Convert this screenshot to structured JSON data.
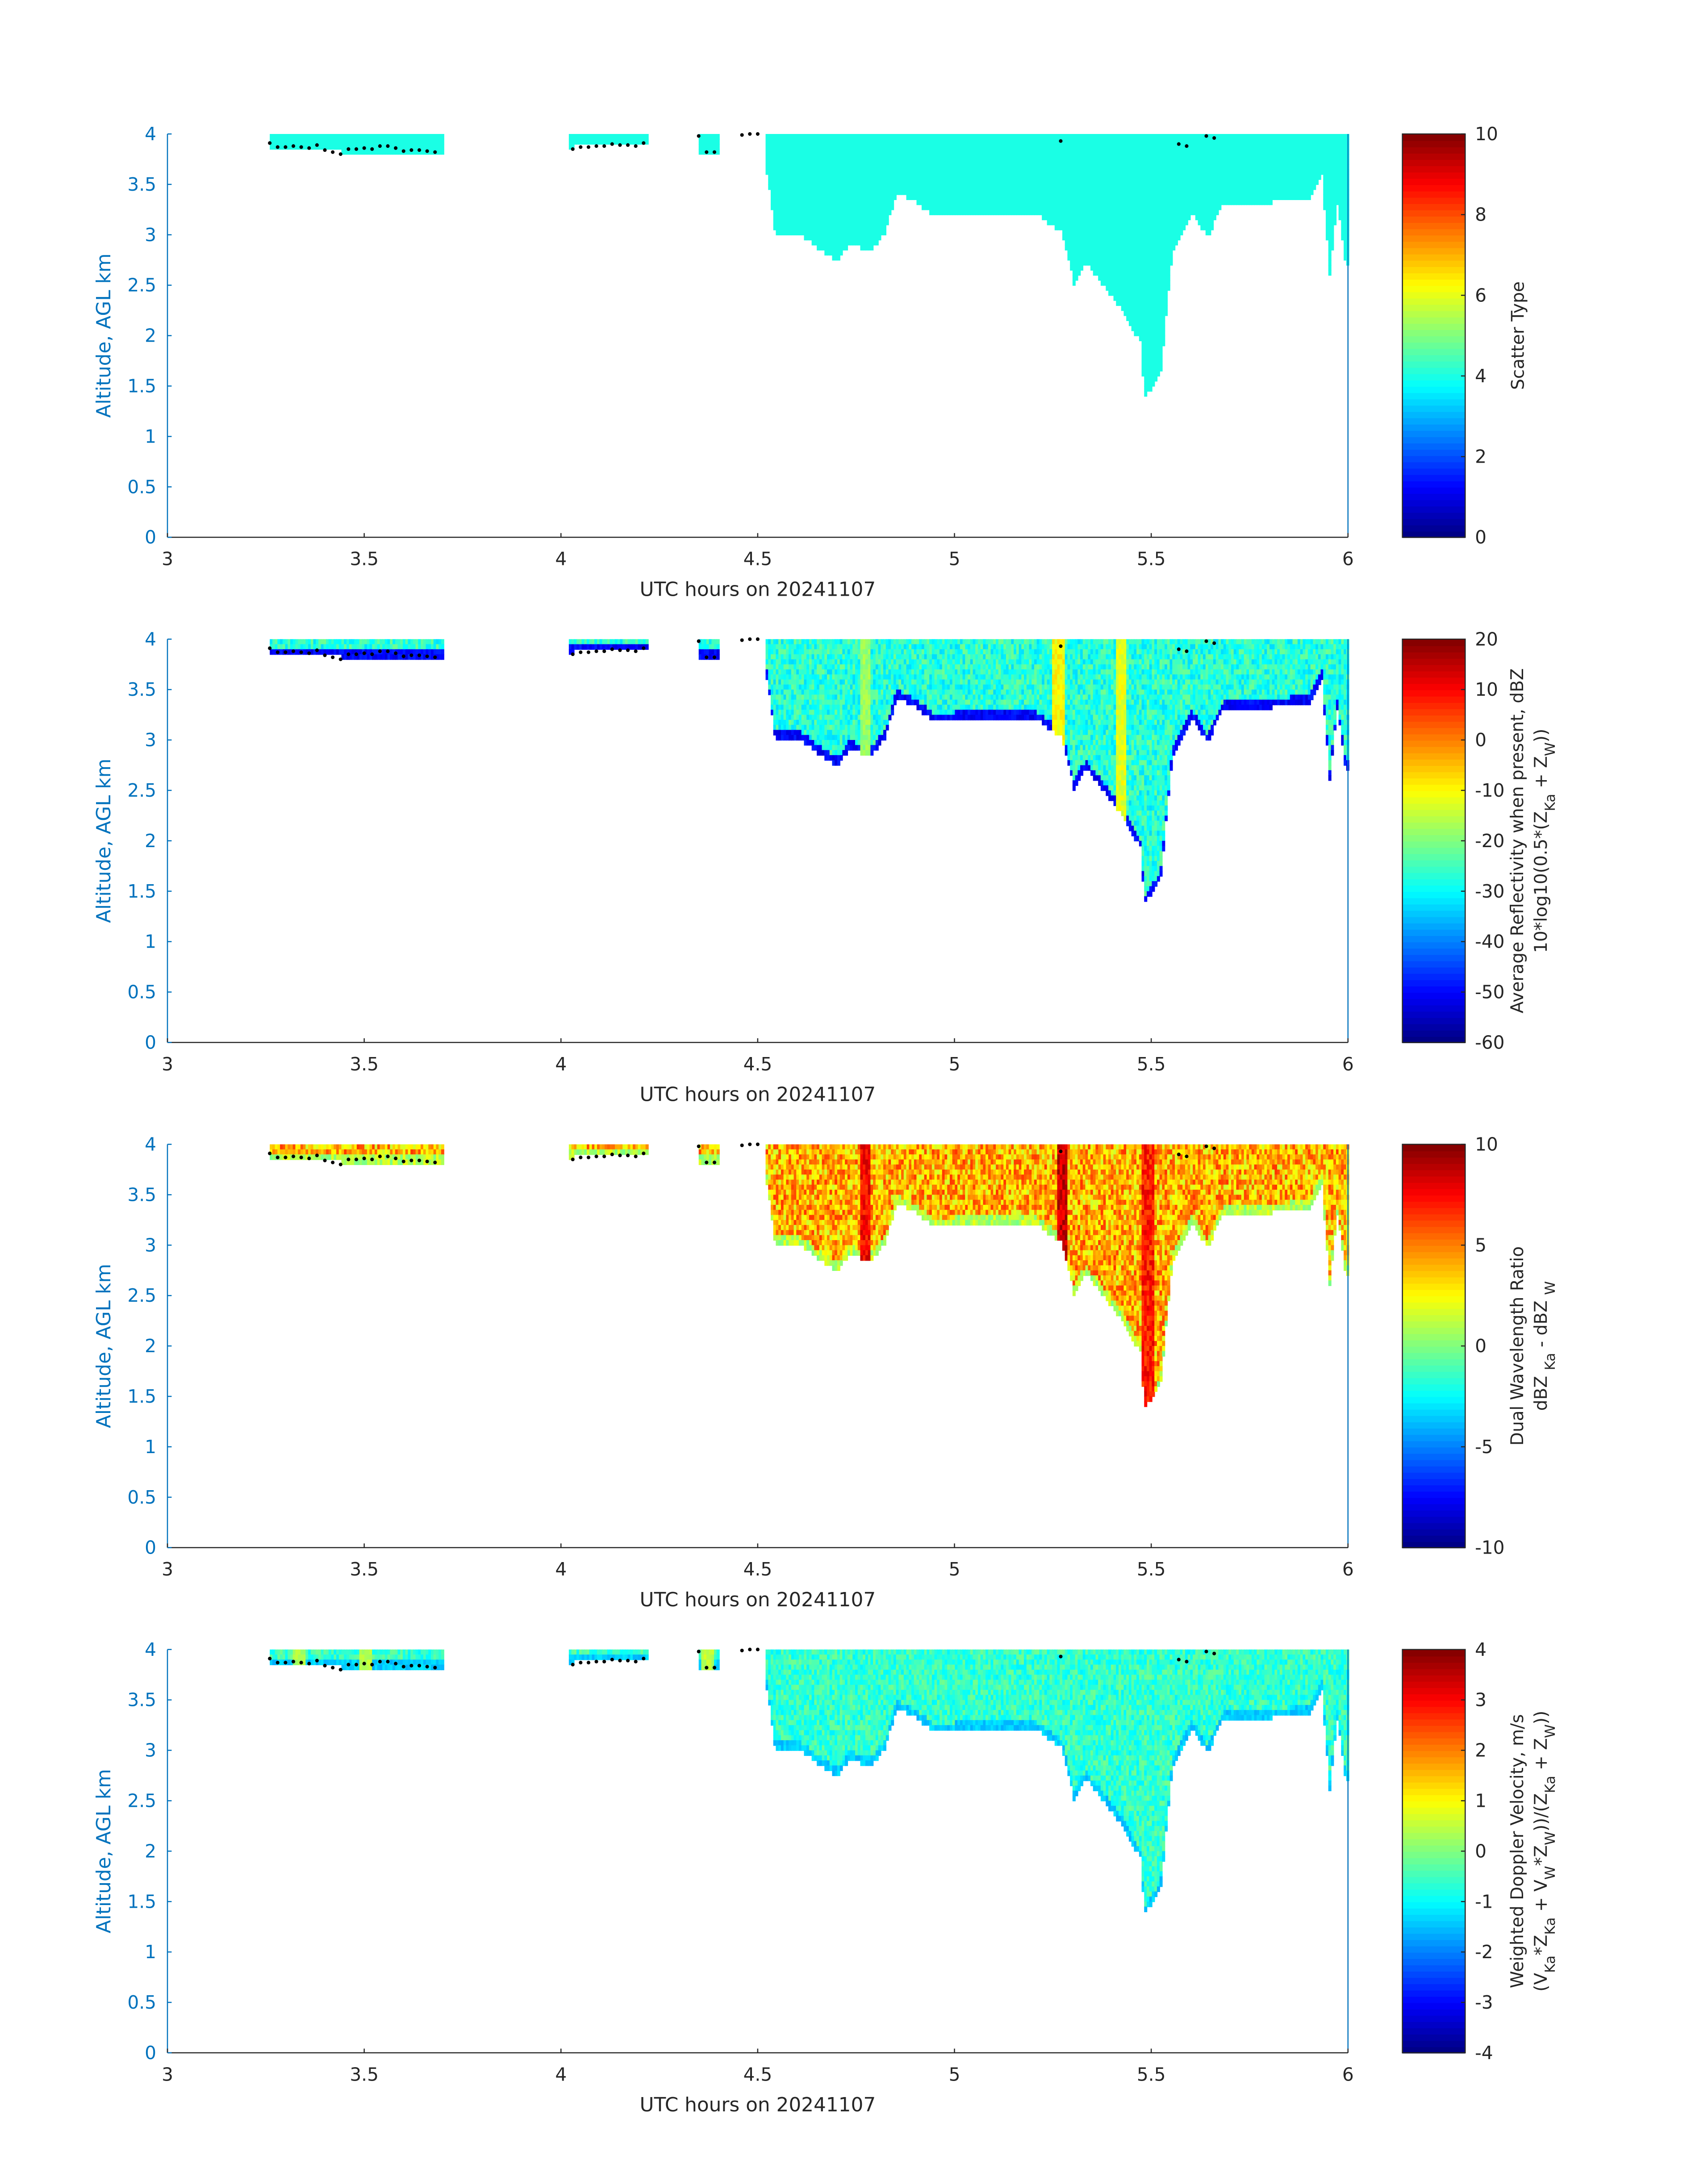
{
  "chart_data": {
    "type": "heatmap",
    "xlabel": "UTC hours on 20241107",
    "ylabel": "Altitude, AGL km",
    "xlim": [
      3,
      6
    ],
    "ylim": [
      0,
      4
    ],
    "xticks": [
      "3",
      "3.5",
      "4",
      "4.5",
      "5",
      "5.5",
      "6"
    ],
    "yticks": [
      "0",
      "0.5",
      "1",
      "1.5",
      "2",
      "2.5",
      "3",
      "3.5",
      "4"
    ],
    "colormap": "jet",
    "axis_color": "#0072BD",
    "cloud_regions": [
      {
        "x": [
          3.26,
          3.7
        ],
        "base": [
          [
            3.26,
            3.82
          ],
          [
            3.45,
            3.8
          ],
          [
            3.7,
            3.8
          ]
        ],
        "top": 4.0
      },
      {
        "x": [
          4.02,
          4.22
        ],
        "base": [
          [
            4.02,
            3.85
          ],
          [
            4.22,
            3.87
          ]
        ],
        "top": 4.0
      },
      {
        "x": [
          4.35,
          4.4
        ],
        "base": [
          [
            4.35,
            3.8
          ],
          [
            4.4,
            3.8
          ]
        ],
        "top": 4.0
      },
      {
        "x": [
          4.46,
          4.5
        ],
        "base": [
          [
            4.46,
            3.97
          ],
          [
            4.5,
            3.97
          ]
        ],
        "top": 4.0
      },
      {
        "x": [
          4.52,
          6.0
        ],
        "base": [
          [
            4.52,
            3.6
          ],
          [
            4.54,
            3.0
          ],
          [
            4.6,
            3.0
          ],
          [
            4.65,
            2.85
          ],
          [
            4.7,
            2.72
          ],
          [
            4.73,
            2.9
          ],
          [
            4.76,
            2.85
          ],
          [
            4.79,
            2.85
          ],
          [
            4.82,
            3.0
          ],
          [
            4.85,
            3.4
          ],
          [
            4.9,
            3.3
          ],
          [
            4.95,
            3.15
          ],
          [
            5.05,
            3.2
          ],
          [
            5.2,
            3.2
          ],
          [
            5.27,
            3.0
          ],
          [
            5.3,
            2.5
          ],
          [
            5.33,
            2.7
          ],
          [
            5.38,
            2.45
          ],
          [
            5.42,
            2.25
          ],
          [
            5.47,
            1.9
          ],
          [
            5.48,
            1.35
          ],
          [
            5.52,
            1.6
          ],
          [
            5.55,
            2.8
          ],
          [
            5.6,
            3.2
          ],
          [
            5.64,
            2.95
          ],
          [
            5.68,
            3.3
          ],
          [
            5.8,
            3.3
          ],
          [
            5.9,
            3.35
          ],
          [
            5.93,
            3.6
          ],
          [
            5.95,
            2.6
          ],
          [
            5.97,
            3.3
          ],
          [
            5.99,
            2.7
          ],
          [
            6.0,
            2.7
          ]
        ],
        "top": 4.0
      }
    ],
    "cloud_top_markers": [
      [
        3.26,
        3.91
      ],
      [
        3.28,
        3.87
      ],
      [
        3.3,
        3.87
      ],
      [
        3.32,
        3.88
      ],
      [
        3.34,
        3.87
      ],
      [
        3.36,
        3.86
      ],
      [
        3.38,
        3.89
      ],
      [
        3.4,
        3.84
      ],
      [
        3.42,
        3.82
      ],
      [
        3.44,
        3.8
      ],
      [
        3.46,
        3.85
      ],
      [
        3.48,
        3.85
      ],
      [
        3.5,
        3.86
      ],
      [
        3.52,
        3.85
      ],
      [
        3.54,
        3.88
      ],
      [
        3.56,
        3.88
      ],
      [
        3.58,
        3.86
      ],
      [
        3.6,
        3.83
      ],
      [
        3.62,
        3.84
      ],
      [
        3.64,
        3.84
      ],
      [
        3.66,
        3.83
      ],
      [
        3.68,
        3.82
      ],
      [
        4.03,
        3.85
      ],
      [
        4.05,
        3.87
      ],
      [
        4.07,
        3.87
      ],
      [
        4.09,
        3.88
      ],
      [
        4.11,
        3.88
      ],
      [
        4.13,
        3.9
      ],
      [
        4.15,
        3.89
      ],
      [
        4.17,
        3.89
      ],
      [
        4.19,
        3.88
      ],
      [
        4.21,
        3.91
      ],
      [
        4.35,
        3.98
      ],
      [
        4.37,
        3.82
      ],
      [
        4.39,
        3.82
      ],
      [
        4.46,
        3.99
      ],
      [
        4.48,
        4.0
      ],
      [
        4.5,
        4.0
      ],
      [
        5.27,
        3.93
      ],
      [
        5.57,
        3.9
      ],
      [
        5.59,
        3.88
      ],
      [
        5.64,
        3.98
      ],
      [
        5.66,
        3.96
      ]
    ],
    "panels": [
      {
        "colorbar_label": [
          [
            {
              "t": "Scatter Type"
            }
          ]
        ],
        "clim": [
          0,
          10
        ],
        "cticks": [
          "0",
          "2",
          "4",
          "6",
          "8",
          "10"
        ],
        "typical_value": 4,
        "spread": 0,
        "edge_value": 4,
        "hot_times": []
      },
      {
        "colorbar_label": [
          [
            {
              "t": "Average Reflectivity when present, dBZ"
            }
          ],
          [
            {
              "t": "10*log10(0.5*(Z"
            },
            {
              "t": "Ka",
              "sub": true
            },
            {
              "t": " + Z"
            },
            {
              "t": "W",
              "sub": true
            },
            {
              "t": "))"
            }
          ]
        ],
        "clim": [
          -60,
          20
        ],
        "cticks": [
          "-60",
          "-50",
          "-40",
          "-30",
          "-20",
          "-10",
          "0",
          "10",
          "20"
        ],
        "typical_value": -27,
        "spread": 6,
        "edge_value": -50,
        "hot_times": [
          [
            5.26,
            -10
          ],
          [
            5.42,
            -12
          ],
          [
            4.77,
            -18
          ]
        ]
      },
      {
        "colorbar_label": [
          [
            {
              "t": "Dual Wavelength Ratio"
            }
          ],
          [
            {
              "t": "dBZ "
            },
            {
              "t": "Ka",
              "sub": true
            },
            {
              "t": " - dBZ "
            },
            {
              "t": "W",
              "sub": true
            }
          ]
        ],
        "clim": [
          -10,
          10
        ],
        "cticks": [
          "-10",
          "-5",
          "0",
          "5",
          "10"
        ],
        "typical_value": 4,
        "spread": 2.5,
        "edge_value": 1,
        "hot_times": [
          [
            5.27,
            8.5
          ],
          [
            4.77,
            7.5
          ],
          [
            5.49,
            7
          ]
        ]
      },
      {
        "colorbar_label": [
          [
            {
              "t": "Weighted Doppler Velocity, m/s"
            }
          ],
          [
            {
              "t": "(V"
            },
            {
              "t": "Ka",
              "sub": true
            },
            {
              "t": "*Z"
            },
            {
              "t": "Ka",
              "sub": true
            },
            {
              "t": " + V"
            },
            {
              "t": "W",
              "sub": true
            },
            {
              "t": "*Z"
            },
            {
              "t": "W",
              "sub": true
            },
            {
              "t": "))/(Z"
            },
            {
              "t": "Ka",
              "sub": true
            },
            {
              "t": " + Z"
            },
            {
              "t": "W",
              "sub": true
            },
            {
              "t": "))"
            }
          ]
        ],
        "clim": [
          -4,
          4
        ],
        "cticks": [
          "-4",
          "-3",
          "-2",
          "-1",
          "0",
          "1",
          "2",
          "3",
          "4"
        ],
        "typical_value": -0.6,
        "spread": 0.5,
        "edge_value": -1.4,
        "hot_times": [
          [
            3.33,
            0.3
          ],
          [
            3.5,
            0.4
          ],
          [
            4.37,
            0.5
          ]
        ]
      }
    ]
  }
}
